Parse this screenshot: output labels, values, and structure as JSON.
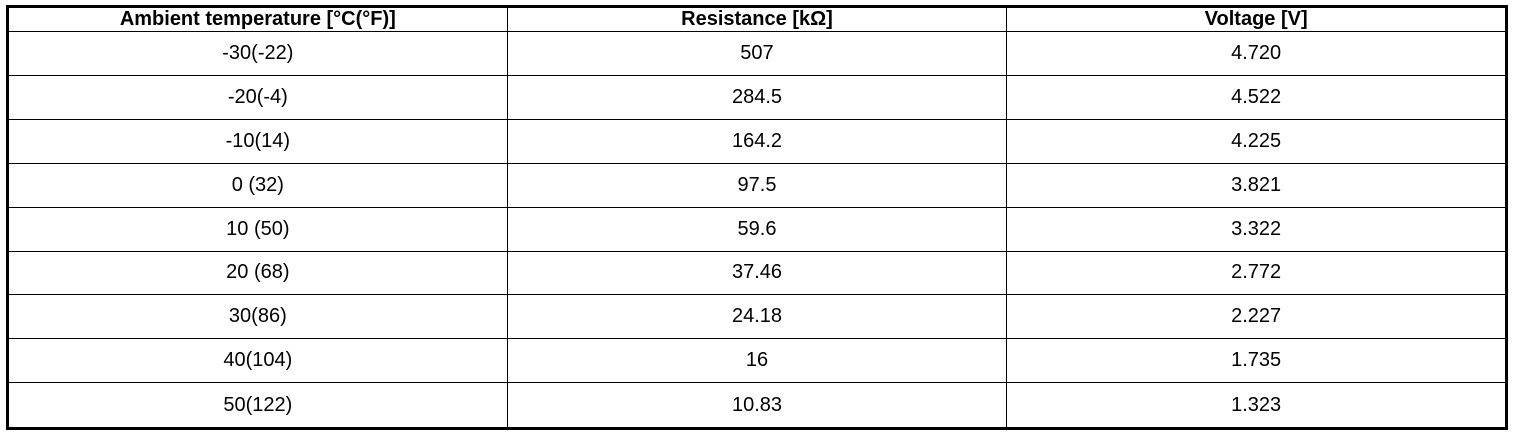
{
  "table": {
    "header": [
      "Ambient temperature [°C(°F)]",
      "Resistance [kΩ]",
      "Voltage [V]"
    ],
    "rows": [
      [
        "-30(-22)",
        "507",
        "4.720"
      ],
      [
        "-20(-4)",
        "284.5",
        "4.522"
      ],
      [
        "-10(14)",
        "164.2",
        "4.225"
      ],
      [
        "0 (32)",
        "97.5",
        "3.821"
      ],
      [
        "10 (50)",
        "59.6",
        "3.322"
      ],
      [
        "20 (68)",
        "37.46",
        "2.772"
      ],
      [
        "30(86)",
        "24.18",
        "2.227"
      ],
      [
        "40(104)",
        "16",
        "1.735"
      ],
      [
        "50(122)",
        "10.83",
        "1.323"
      ]
    ]
  }
}
